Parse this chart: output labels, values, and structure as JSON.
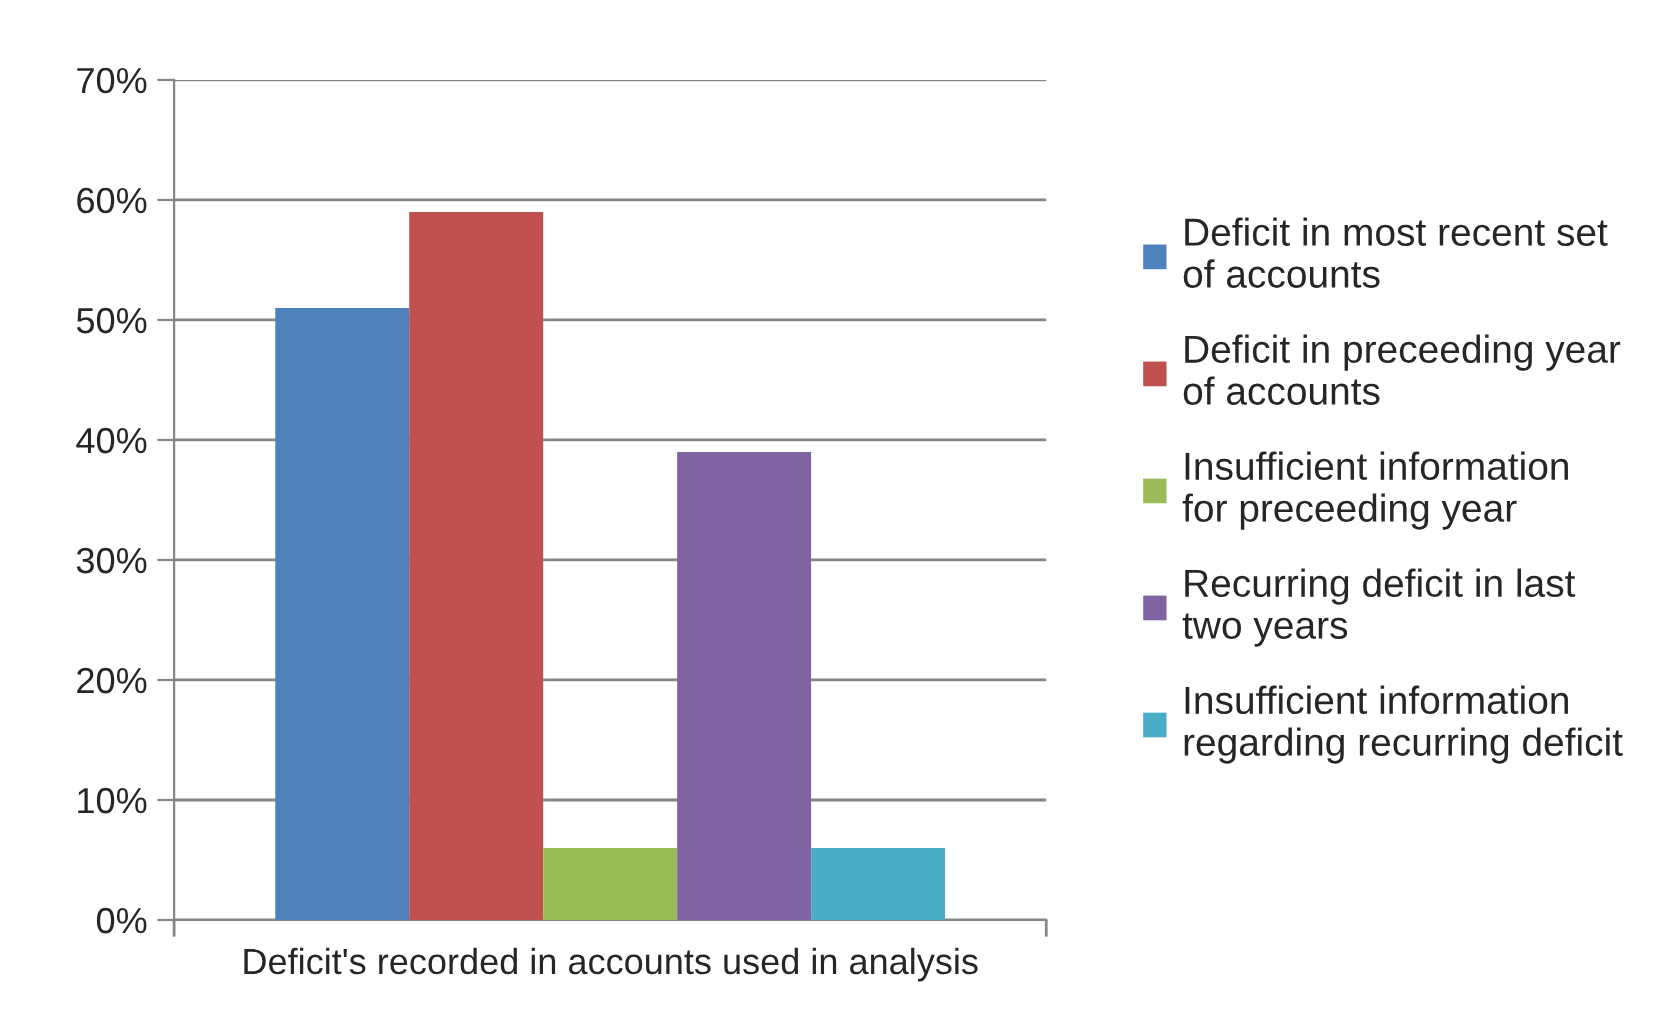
{
  "chart_data": {
    "type": "bar",
    "categories": [
      "Deficit's recorded in accounts used in analysis"
    ],
    "series": [
      {
        "name": "Deficit in most recent set of accounts",
        "color": "#4f81bd",
        "values": [
          51
        ]
      },
      {
        "name": "Deficit in preceeding year of accounts",
        "color": "#c0504d",
        "values": [
          59
        ]
      },
      {
        "name": "Insufficient information for preceeding year",
        "color": "#9bbb59",
        "values": [
          6
        ]
      },
      {
        "name": "Recurring deficit in last two years",
        "color": "#8064a2",
        "values": [
          39
        ]
      },
      {
        "name": "Insufficient information regarding recurring deficit",
        "color": "#4bacc6",
        "values": [
          6
        ]
      }
    ],
    "ylim": [
      0,
      70
    ],
    "yticks": [
      {
        "value": 0,
        "label": "0%"
      },
      {
        "value": 10,
        "label": "10%"
      },
      {
        "value": 20,
        "label": "20%"
      },
      {
        "value": 30,
        "label": "30%"
      },
      {
        "value": 40,
        "label": "40%"
      },
      {
        "value": 50,
        "label": "50%"
      },
      {
        "value": 60,
        "label": "60%"
      },
      {
        "value": 70,
        "label": "70%"
      }
    ],
    "grid": "y",
    "legend": "right"
  }
}
